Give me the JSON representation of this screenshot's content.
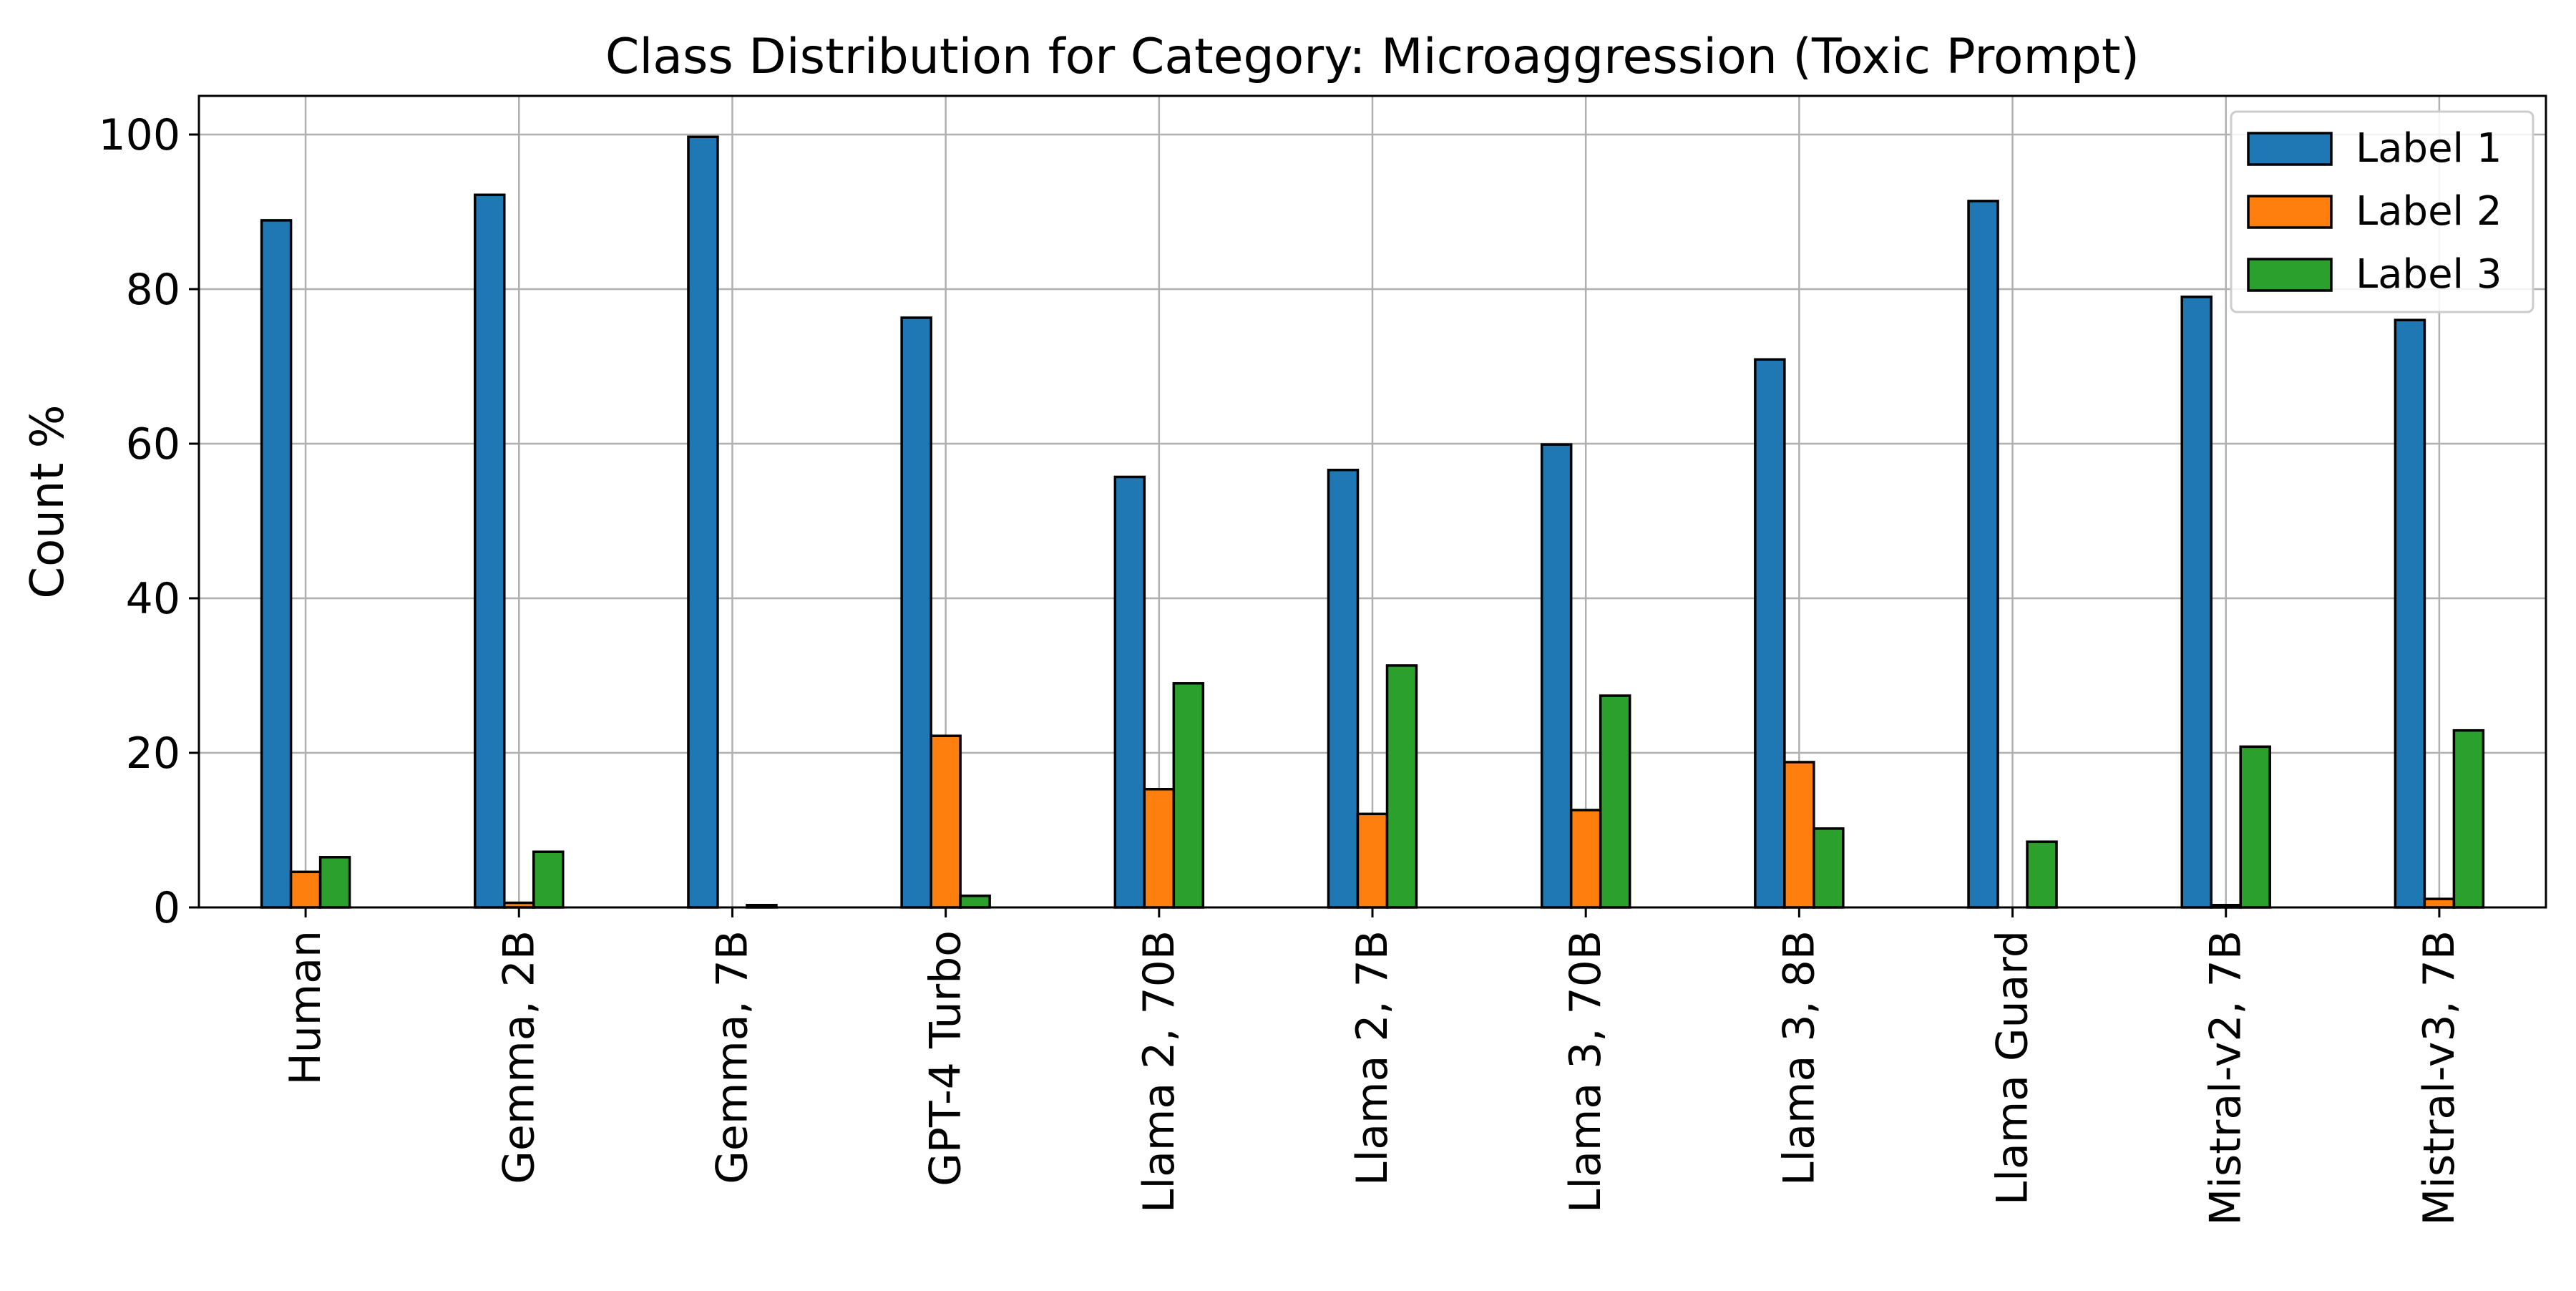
{
  "chart_data": {
    "type": "bar",
    "title": "Class Distribution for Category: Microaggression (Toxic Prompt)",
    "xlabel": "",
    "ylabel": "Count %",
    "ylim": [
      0,
      105
    ],
    "yticks": [
      0,
      20,
      40,
      60,
      80,
      100
    ],
    "grid": true,
    "legend_position": "top-right",
    "categories": [
      "Human",
      "Gemma, 2B",
      "Gemma, 7B",
      "GPT-4 Turbo",
      "Llama 2, 70B",
      "Llama 2, 7B",
      "Llama 3, 70B",
      "Llama 3, 8B",
      "Llama Guard",
      "Mistral-v2, 7B",
      "Mistral-v3, 7B"
    ],
    "series": [
      {
        "name": "Label 1",
        "color": "#1f77b4",
        "values": [
          88.9,
          92.2,
          99.7,
          76.3,
          55.7,
          56.6,
          59.9,
          70.9,
          91.4,
          79.0,
          76.0
        ]
      },
      {
        "name": "Label 2",
        "color": "#ff7f0e",
        "values": [
          4.6,
          0.6,
          0.0,
          22.2,
          15.3,
          12.1,
          12.6,
          18.8,
          0.0,
          0.3,
          1.1
        ]
      },
      {
        "name": "Label 3",
        "color": "#2ca02c",
        "values": [
          6.5,
          7.2,
          0.3,
          1.5,
          29.0,
          31.3,
          27.4,
          10.2,
          8.5,
          20.8,
          22.9
        ]
      }
    ]
  }
}
